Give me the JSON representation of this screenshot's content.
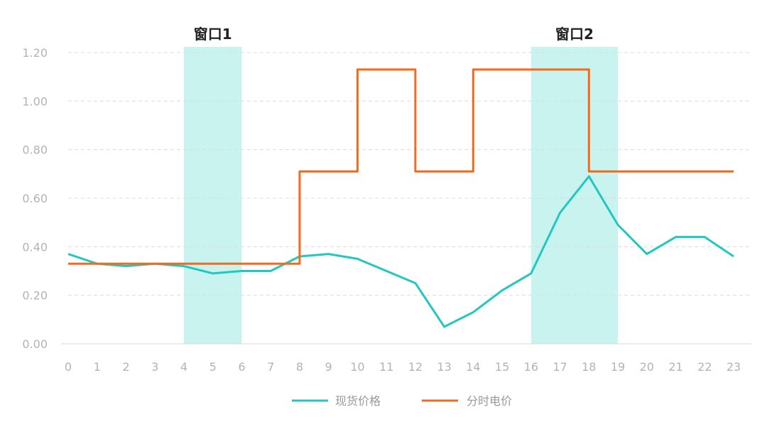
{
  "chart_data": {
    "type": "line",
    "title": "",
    "xlabel": "",
    "ylabel": "",
    "xlim": [
      0,
      23
    ],
    "ylim": [
      0,
      1.2
    ],
    "x_ticks": [
      "0",
      "1",
      "2",
      "3",
      "4",
      "5",
      "6",
      "7",
      "8",
      "9",
      "10",
      "11",
      "12",
      "13",
      "14",
      "15",
      "16",
      "17",
      "18",
      "19",
      "20",
      "21",
      "22",
      "23"
    ],
    "y_ticks": [
      "0.00",
      "0.20",
      "0.40",
      "0.60",
      "0.80",
      "1.00",
      "1.20"
    ],
    "grid": "horizontal-dashed",
    "legend_position": "bottom-center",
    "shaded_windows": [
      {
        "label": "窗口1",
        "start": 4,
        "end": 6
      },
      {
        "label": "窗口2",
        "start": 16,
        "end": 19
      }
    ],
    "series": [
      {
        "name": "现货价格",
        "color": "#22c7c0",
        "style": "line",
        "x": [
          0,
          1,
          2,
          3,
          4,
          5,
          6,
          7,
          8,
          9,
          10,
          11,
          12,
          13,
          14,
          15,
          16,
          17,
          18,
          19,
          20,
          21,
          22,
          23
        ],
        "values": [
          0.37,
          0.33,
          0.32,
          0.33,
          0.32,
          0.29,
          0.3,
          0.3,
          0.36,
          0.37,
          0.35,
          0.3,
          0.25,
          0.07,
          0.13,
          0.22,
          0.29,
          0.54,
          0.69,
          0.49,
          0.37,
          0.44,
          0.44,
          0.36
        ]
      },
      {
        "name": "分时电价",
        "color": "#f26b1d",
        "style": "step",
        "segments": [
          {
            "from": 0,
            "to": 8,
            "value": 0.33
          },
          {
            "from": 8,
            "to": 10,
            "value": 0.71
          },
          {
            "from": 10,
            "to": 12,
            "value": 1.13
          },
          {
            "from": 12,
            "to": 14,
            "value": 0.71
          },
          {
            "from": 14,
            "to": 18,
            "value": 1.13
          },
          {
            "from": 18,
            "to": 23,
            "value": 0.71
          }
        ]
      }
    ]
  }
}
